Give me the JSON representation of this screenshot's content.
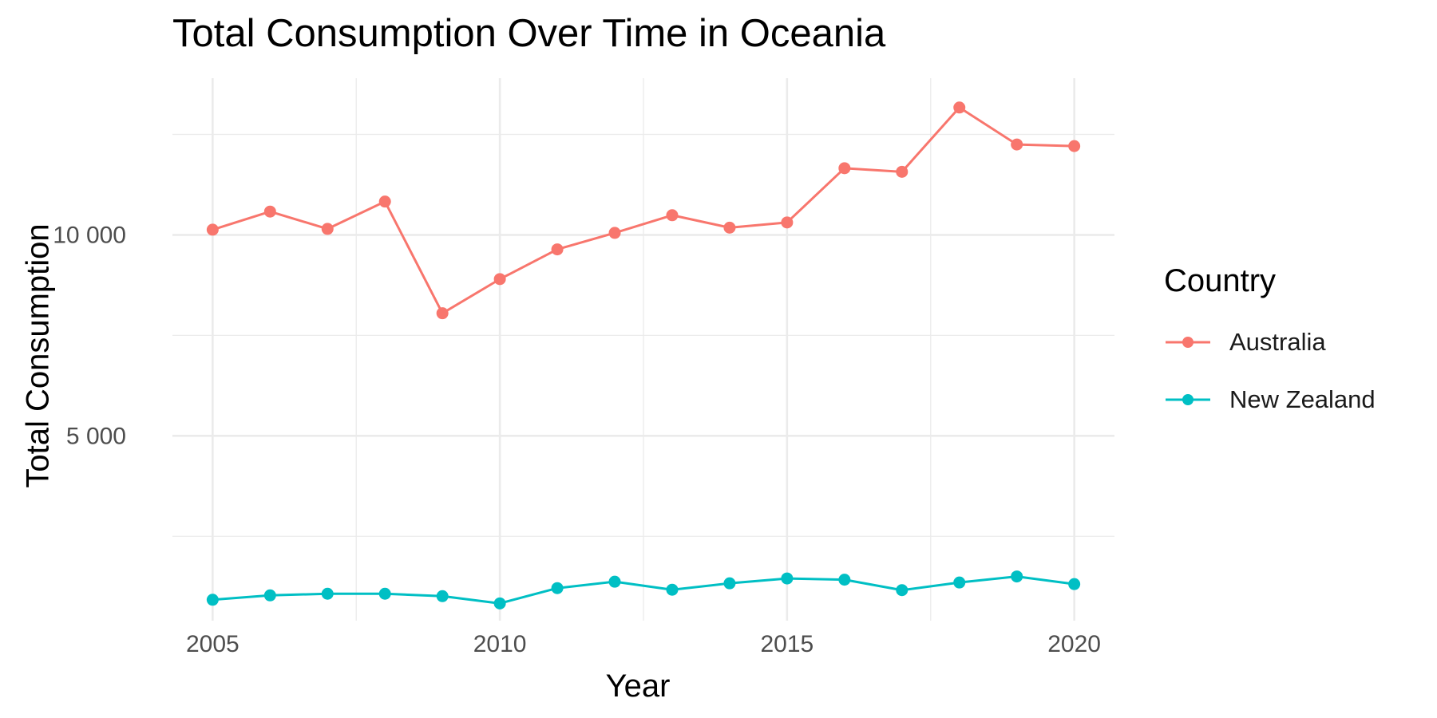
{
  "chart_data": {
    "type": "line",
    "title": "Total Consumption Over Time in Oceania",
    "xlabel": "Year",
    "ylabel": "Total Consumption",
    "legend_title": "Country",
    "legend_position": "right",
    "grid": true,
    "x_ticks": [
      2005,
      2010,
      2015,
      2020
    ],
    "x_tick_labels": [
      "2005",
      "2010",
      "2015",
      "2020"
    ],
    "y_ticks": [
      5000,
      10000
    ],
    "y_tick_labels": [
      "5 000",
      "10 000"
    ],
    "xlim": [
      2004.3,
      2020.7
    ],
    "ylim": [
      400,
      13900
    ],
    "x": [
      2005,
      2006,
      2007,
      2008,
      2009,
      2010,
      2011,
      2012,
      2013,
      2014,
      2015,
      2016,
      2017,
      2018,
      2019,
      2020
    ],
    "series": [
      {
        "name": "Australia",
        "color": "#F8766D",
        "values": [
          10130,
          10580,
          10150,
          10830,
          8050,
          8900,
          9640,
          10050,
          10490,
          10180,
          10310,
          11660,
          11570,
          13170,
          12250,
          12210
        ]
      },
      {
        "name": "New Zealand",
        "color": "#00BFC4",
        "values": [
          920,
          1030,
          1070,
          1070,
          1010,
          830,
          1210,
          1370,
          1170,
          1330,
          1450,
          1420,
          1160,
          1350,
          1500,
          1310
        ]
      }
    ]
  }
}
